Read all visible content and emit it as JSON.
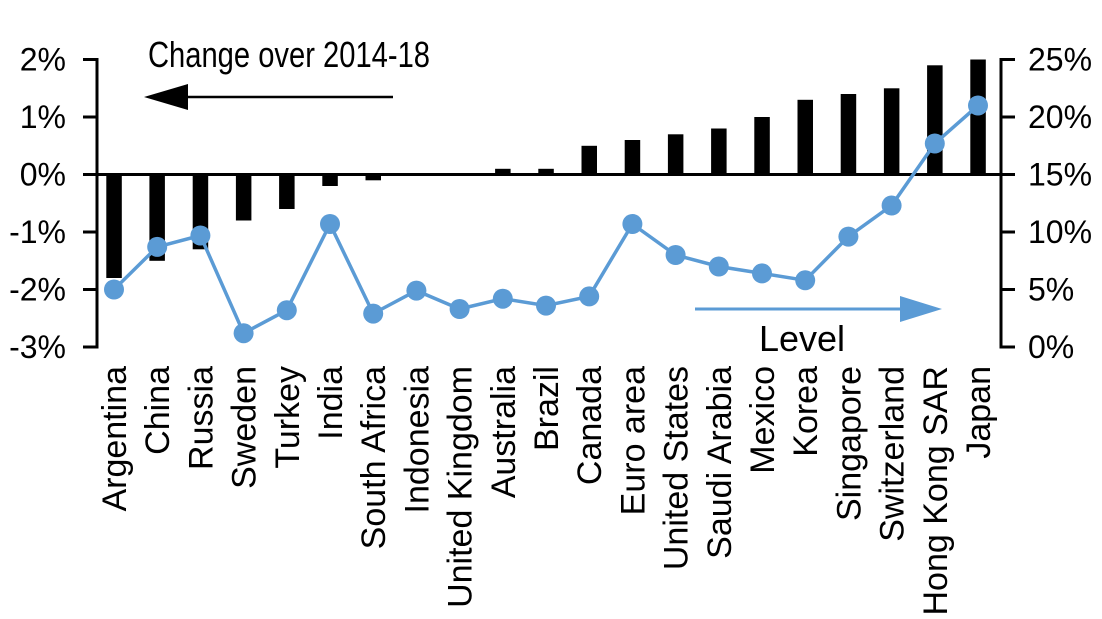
{
  "chart_data": {
    "type": "combo",
    "subtype": "bar+line",
    "grid": "off",
    "legend": "none",
    "categories": [
      "Argentina",
      "China",
      "Russia",
      "Sweden",
      "Turkey",
      "India",
      "South Africa",
      "Indonesia",
      "United Kingdom",
      "Australia",
      "Brazil",
      "Canada",
      "Euro area",
      "United States",
      "Saudi Arabia",
      "Mexico",
      "Korea",
      "Singapore",
      "Switzerland",
      "Hong Kong SAR",
      "Japan"
    ],
    "series": [
      {
        "name": "Change over 2014-18",
        "type": "bar",
        "axis": "left",
        "unit": "%",
        "color": "#000000",
        "values": [
          -1.8,
          -1.5,
          -1.3,
          -0.8,
          -0.6,
          -0.2,
          -0.1,
          0.0,
          0.0,
          0.1,
          0.1,
          0.5,
          0.6,
          0.7,
          0.8,
          1.0,
          1.3,
          1.4,
          1.5,
          1.9,
          2.0
        ]
      },
      {
        "name": "Level",
        "type": "line",
        "axis": "right",
        "unit": "%",
        "color": "#5B9BD5",
        "values": [
          5.0,
          8.7,
          9.7,
          1.2,
          3.2,
          10.7,
          2.9,
          4.9,
          3.3,
          4.2,
          3.6,
          4.4,
          10.7,
          8.0,
          7.0,
          6.4,
          5.8,
          9.6,
          12.3,
          17.7,
          21.0
        ]
      }
    ],
    "left_axis": {
      "min": -3,
      "max": 2,
      "tick_labels": [
        "2%",
        "1%",
        "0%",
        "-1%",
        "-2%",
        "-3%"
      ],
      "tick_values": [
        2,
        1,
        0,
        -1,
        -2,
        -3
      ]
    },
    "right_axis": {
      "min": 0,
      "max": 25,
      "tick_labels": [
        "25%",
        "20%",
        "15%",
        "10%",
        "5%",
        "0%"
      ],
      "tick_values": [
        25,
        20,
        15,
        10,
        5,
        0
      ]
    },
    "annotations": [
      {
        "text": "Change over 2014-18",
        "arrow_direction": "left",
        "color": "#000000"
      },
      {
        "text": "Level",
        "arrow_direction": "right",
        "color": "#5B9BD5"
      }
    ]
  }
}
